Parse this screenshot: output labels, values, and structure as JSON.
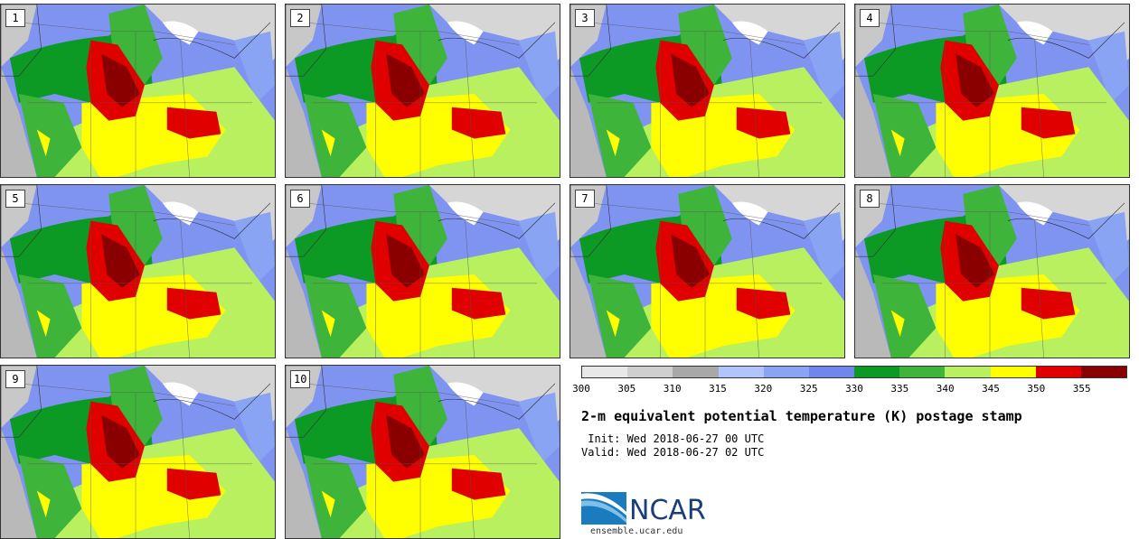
{
  "panels": [
    "1",
    "2",
    "3",
    "4",
    "5",
    "6",
    "7",
    "8",
    "9",
    "10"
  ],
  "colorbar": {
    "colors": [
      "#e8e8e8",
      "#cfcfcf",
      "#a8a8a8",
      "#b0c4ff",
      "#8aa4f4",
      "#6f86ee",
      "#0c9a25",
      "#3fb43a",
      "#b8f060",
      "#ffff00",
      "#e00000",
      "#8a0000"
    ],
    "tick_labels": [
      "300",
      "305",
      "310",
      "315",
      "320",
      "325",
      "330",
      "335",
      "340",
      "345",
      "350",
      "355"
    ]
  },
  "title": "2-m equivalent potential temperature (K) postage stamp",
  "init_text": " Init: Wed 2018-06-27 00 UTC",
  "valid_text": "Valid: Wed 2018-06-27 02 UTC",
  "logo_text": "NCAR",
  "url": "ensemble.ucar.edu"
}
